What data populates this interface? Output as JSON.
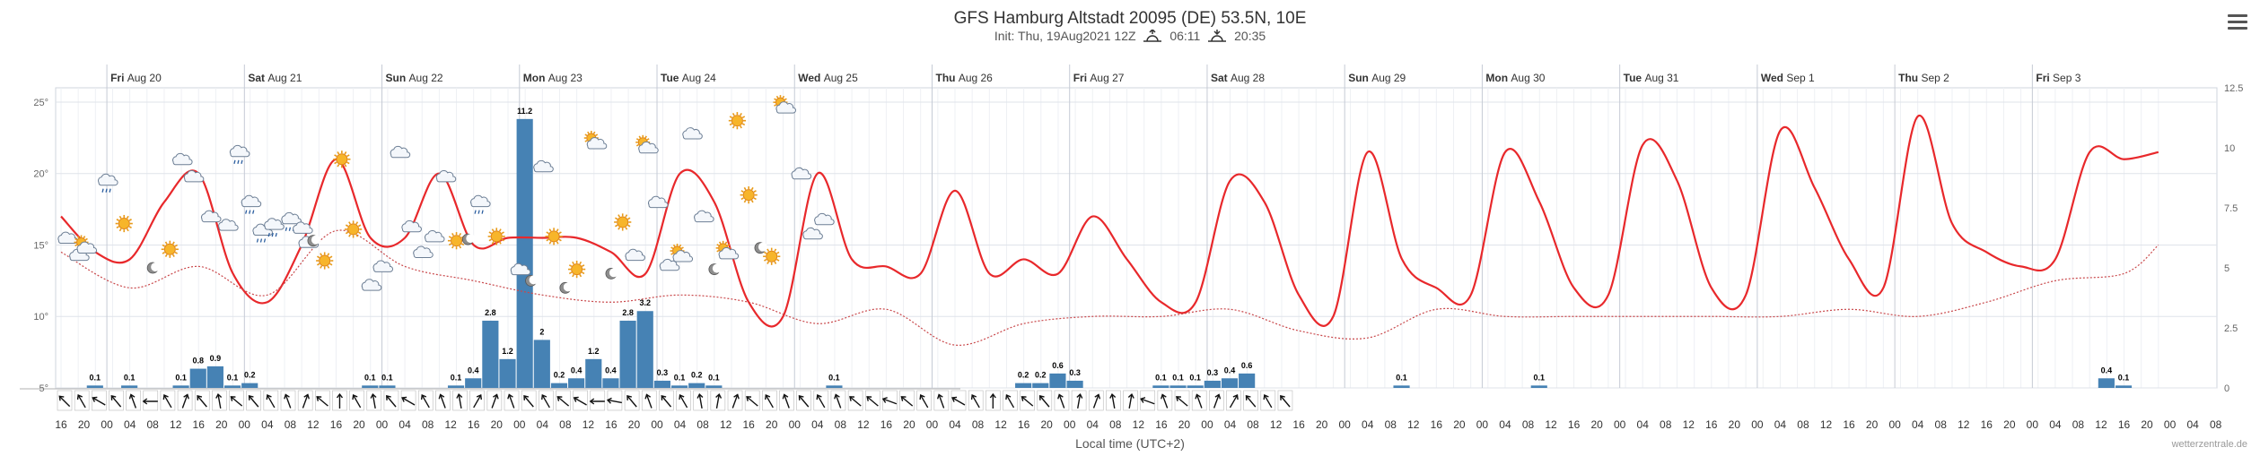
{
  "header": {
    "title": "GFS Hamburg Altstadt 20095 (DE) 53.5N, 10E",
    "init": "Init: Thu, 19Aug2021 12Z",
    "sunrise": "06:11",
    "sunset": "20:35"
  },
  "footer": {
    "xlabel": "Local time (UTC+2)",
    "credit": "wetterzentrale.de"
  },
  "chart_data": {
    "type": "line",
    "days": [
      "Fri Aug 20",
      "Sat Aug 21",
      "Sun Aug 22",
      "Mon Aug 23",
      "Tue Aug 24",
      "Wed Aug 25",
      "Thu Aug 26",
      "Fri Aug 27",
      "Sat Aug 28",
      "Sun Aug 29",
      "Mon Aug 30",
      "Tue Aug 31",
      "Wed Sep 1",
      "Thu Sep 2",
      "Fri Sep 3"
    ],
    "y_left": {
      "ticks": [
        "5°",
        "10°",
        "15°",
        "20°",
        "25°"
      ],
      "range": [
        5,
        26
      ]
    },
    "y_right": {
      "ticks": [
        "0",
        "2.5",
        "5",
        "7.5",
        "10",
        "12.5"
      ],
      "range": [
        0,
        12.5
      ]
    },
    "hours_start": "16",
    "hour_labels": [
      "16",
      "20",
      "00",
      "04",
      "08",
      "12",
      "16",
      "20",
      "00",
      "04",
      "08",
      "12",
      "16",
      "20",
      "00",
      "04",
      "08",
      "12",
      "16",
      "20",
      "00",
      "04",
      "08",
      "12",
      "16",
      "20",
      "00",
      "04",
      "08",
      "12",
      "16",
      "20",
      "00",
      "04",
      "08",
      "12",
      "16",
      "20",
      "00",
      "04",
      "08",
      "12",
      "16",
      "20",
      "00",
      "04",
      "08",
      "12",
      "16",
      "20",
      "00",
      "04",
      "08",
      "12",
      "16",
      "20",
      "00",
      "04",
      "08",
      "12",
      "16",
      "20",
      "00",
      "04",
      "08",
      "12",
      "16",
      "20",
      "00",
      "04",
      "08",
      "12",
      "16",
      "20",
      "00",
      "04",
      "08",
      "12",
      "16",
      "20",
      "00",
      "04",
      "08",
      "12",
      "16",
      "20",
      "00",
      "04",
      "08",
      "12",
      "16",
      "20",
      "00",
      "04",
      "08"
    ],
    "series": [
      {
        "name": "temperature",
        "color": "#e8282b",
        "x": [
          0,
          6,
          12,
          18,
          24,
          30,
          36,
          42,
          48,
          54,
          60,
          66,
          72,
          78,
          84,
          90,
          96,
          102,
          108,
          114,
          120,
          126,
          132,
          138,
          144,
          150,
          156,
          162,
          168,
          174,
          180,
          186,
          192,
          198,
          204,
          210,
          216,
          222,
          228,
          234,
          240,
          246,
          252,
          258,
          264,
          270,
          276,
          282,
          288,
          294,
          300,
          306,
          312,
          318,
          324,
          330,
          336,
          342,
          348,
          354,
          360,
          366
        ],
        "values": [
          17,
          14.5,
          14,
          18,
          20,
          13,
          11,
          15,
          21,
          15.5,
          15.5,
          20,
          15,
          15.5,
          15.5,
          15.5,
          14.5,
          13,
          20,
          18,
          11,
          10,
          20,
          14,
          13.5,
          13,
          18.8,
          13,
          14,
          13,
          17,
          14,
          11,
          11,
          19.5,
          18,
          11.5,
          10,
          21.5,
          14,
          12,
          11.5,
          21.5,
          18,
          12,
          11.5,
          22,
          19.5,
          12,
          11.5,
          23,
          19,
          14,
          12,
          24,
          16.5,
          14.5,
          13.5,
          14,
          21.5,
          21,
          21.5
        ]
      },
      {
        "name": "dewpoint",
        "color": "#c9484b",
        "x": [
          0,
          12,
          24,
          36,
          48,
          60,
          72,
          84,
          96,
          108,
          120,
          132,
          144,
          156,
          168,
          180,
          192,
          204,
          216,
          228,
          240,
          252,
          264,
          276,
          288,
          300,
          312,
          324,
          336,
          348,
          360,
          366
        ],
        "values": [
          14.5,
          12,
          13.5,
          11.5,
          16,
          13.5,
          12.5,
          11.5,
          11,
          11.5,
          11,
          9.5,
          10.5,
          8,
          9.5,
          10,
          10,
          10.5,
          9,
          8.5,
          10.5,
          10,
          10,
          10,
          10,
          10,
          10.5,
          10,
          11,
          12.5,
          13,
          15
        ]
      }
    ],
    "precipitation": {
      "color": "#4682b4",
      "bars": [
        {
          "h": 6,
          "v": 0.1
        },
        {
          "h": 12,
          "v": 0.1
        },
        {
          "h": 21,
          "v": 0.1
        },
        {
          "h": 24,
          "v": 0.8
        },
        {
          "h": 27,
          "v": 0.9
        },
        {
          "h": 30,
          "v": 0.1
        },
        {
          "h": 33,
          "v": 0.2
        },
        {
          "h": 54,
          "v": 0.1
        },
        {
          "h": 57,
          "v": 0.1
        },
        {
          "h": 69,
          "v": 0.1
        },
        {
          "h": 72,
          "v": 0.4
        },
        {
          "h": 75,
          "v": 2.8
        },
        {
          "h": 78,
          "v": 1.2
        },
        {
          "h": 81,
          "v": 11.2
        },
        {
          "h": 84,
          "v": 2.0
        },
        {
          "h": 87,
          "v": 0.2
        },
        {
          "h": 90,
          "v": 0.4
        },
        {
          "h": 93,
          "v": 1.2
        },
        {
          "h": 96,
          "v": 0.4
        },
        {
          "h": 99,
          "v": 2.8
        },
        {
          "h": 102,
          "v": 3.2
        },
        {
          "h": 105,
          "v": 0.3
        },
        {
          "h": 108,
          "v": 0.1
        },
        {
          "h": 111,
          "v": 0.2
        },
        {
          "h": 114,
          "v": 0.1
        },
        {
          "h": 135,
          "v": 0.1
        },
        {
          "h": 168,
          "v": 0.2
        },
        {
          "h": 171,
          "v": 0.2
        },
        {
          "h": 174,
          "v": 0.6
        },
        {
          "h": 177,
          "v": 0.3
        },
        {
          "h": 192,
          "v": 0.1
        },
        {
          "h": 195,
          "v": 0.1
        },
        {
          "h": 198,
          "v": 0.1
        },
        {
          "h": 201,
          "v": 0.3
        },
        {
          "h": 204,
          "v": 0.4
        },
        {
          "h": 207,
          "v": 0.6
        },
        {
          "h": 234,
          "v": 0.1
        },
        {
          "h": 258,
          "v": 0.1
        },
        {
          "h": 357,
          "v": 0.4
        },
        {
          "h": 360,
          "v": 0.1
        }
      ]
    },
    "icons": [
      {
        "h": 1,
        "t": 15.5,
        "k": "cloud-icon"
      },
      {
        "h": 3,
        "t": 14.3,
        "k": "cloud-icon"
      },
      {
        "h": 4,
        "t": 15,
        "k": "sun-cloud-icon"
      },
      {
        "h": 8,
        "t": 19.5,
        "k": "rain-cloud-icon"
      },
      {
        "h": 11,
        "t": 16.5,
        "k": "sun-icon"
      },
      {
        "h": 16,
        "t": 13.4,
        "k": "moon-icon"
      },
      {
        "h": 19,
        "t": 14.7,
        "k": "sun-icon"
      },
      {
        "h": 21,
        "t": 21,
        "k": "cloud-icon"
      },
      {
        "h": 23,
        "t": 19.8,
        "k": "cloud-icon"
      },
      {
        "h": 26,
        "t": 17,
        "k": "cloud-icon"
      },
      {
        "h": 29,
        "t": 16.4,
        "k": "cloud-icon"
      },
      {
        "h": 31,
        "t": 21.5,
        "k": "rain-cloud-icon"
      },
      {
        "h": 33,
        "t": 18,
        "k": "rain-cloud-icon"
      },
      {
        "h": 35,
        "t": 16,
        "k": "rain-cloud-icon"
      },
      {
        "h": 37,
        "t": 16.4,
        "k": "rain-cloud-icon"
      },
      {
        "h": 40,
        "t": 16.8,
        "k": "rain-cloud-icon"
      },
      {
        "h": 42,
        "t": 16.2,
        "k": "cloud-icon"
      },
      {
        "h": 43,
        "t": 15.2,
        "k": "cloud-icon"
      },
      {
        "h": 44,
        "t": 15.3,
        "k": "moon-icon"
      },
      {
        "h": 46,
        "t": 13.9,
        "k": "sun-icon"
      },
      {
        "h": 49,
        "t": 21,
        "k": "sun-icon"
      },
      {
        "h": 51,
        "t": 16.1,
        "k": "sun-icon"
      },
      {
        "h": 54,
        "t": 12.2,
        "k": "cloud-icon"
      },
      {
        "h": 56,
        "t": 13.5,
        "k": "cloud-icon"
      },
      {
        "h": 59,
        "t": 21.5,
        "k": "cloud-icon"
      },
      {
        "h": 61,
        "t": 16.3,
        "k": "cloud-icon"
      },
      {
        "h": 63,
        "t": 14.5,
        "k": "cloud-icon"
      },
      {
        "h": 65,
        "t": 15.6,
        "k": "cloud-icon"
      },
      {
        "h": 67,
        "t": 19.8,
        "k": "cloud-icon"
      },
      {
        "h": 69,
        "t": 15.3,
        "k": "sun-icon"
      },
      {
        "h": 71,
        "t": 15.4,
        "k": "moon-icon"
      },
      {
        "h": 73,
        "t": 18,
        "k": "rain-cloud-icon"
      },
      {
        "h": 76,
        "t": 15.6,
        "k": "sun-icon"
      },
      {
        "h": 80,
        "t": 13.3,
        "k": "cloud-icon"
      },
      {
        "h": 82,
        "t": 12.5,
        "k": "moon-icon"
      },
      {
        "h": 84,
        "t": 20.5,
        "k": "cloud-icon"
      },
      {
        "h": 86,
        "t": 15.6,
        "k": "sun-icon"
      },
      {
        "h": 88,
        "t": 12,
        "k": "moon-icon"
      },
      {
        "h": 90,
        "t": 13.3,
        "k": "sun-icon"
      },
      {
        "h": 93,
        "t": 22.3,
        "k": "sun-cloud-icon"
      },
      {
        "h": 96,
        "t": 13,
        "k": "moon-icon"
      },
      {
        "h": 98,
        "t": 16.6,
        "k": "sun-icon"
      },
      {
        "h": 100,
        "t": 14.3,
        "k": "cloud-icon"
      },
      {
        "h": 102,
        "t": 22,
        "k": "sun-cloud-icon"
      },
      {
        "h": 104,
        "t": 18,
        "k": "cloud-icon"
      },
      {
        "h": 106,
        "t": 13.6,
        "k": "cloud-icon"
      },
      {
        "h": 108,
        "t": 14.4,
        "k": "sun-cloud-icon"
      },
      {
        "h": 110,
        "t": 22.8,
        "k": "cloud-icon"
      },
      {
        "h": 112,
        "t": 17,
        "k": "cloud-icon"
      },
      {
        "h": 114,
        "t": 13.3,
        "k": "moon-icon"
      },
      {
        "h": 116,
        "t": 14.6,
        "k": "sun-cloud-icon"
      },
      {
        "h": 118,
        "t": 23.7,
        "k": "sun-icon"
      },
      {
        "h": 120,
        "t": 18.5,
        "k": "sun-icon"
      },
      {
        "h": 122,
        "t": 14.8,
        "k": "moon-icon"
      },
      {
        "h": 124,
        "t": 14.2,
        "k": "sun-icon"
      },
      {
        "h": 126,
        "t": 24.8,
        "k": "sun-cloud-icon"
      },
      {
        "h": 129,
        "t": 20,
        "k": "cloud-icon"
      },
      {
        "h": 131,
        "t": 15.8,
        "k": "cloud-icon"
      },
      {
        "h": 133,
        "t": 16.8,
        "k": "cloud-icon"
      }
    ],
    "wind": [
      135,
      150,
      120,
      140,
      160,
      90,
      150,
      200,
      140,
      170,
      130,
      140,
      150,
      160,
      200,
      130,
      180,
      150,
      170,
      140,
      120,
      150,
      160,
      170,
      210,
      200,
      160,
      140,
      150,
      130,
      120,
      90,
      100,
      140,
      160,
      140,
      150,
      170,
      190,
      200,
      130,
      150,
      160,
      140,
      150,
      160,
      130,
      130,
      110,
      130,
      150,
      160,
      120,
      150,
      180,
      150,
      130,
      140,
      160,
      190,
      200,
      170,
      190,
      110,
      160,
      130,
      160,
      200,
      210,
      140,
      150,
      140
    ]
  }
}
